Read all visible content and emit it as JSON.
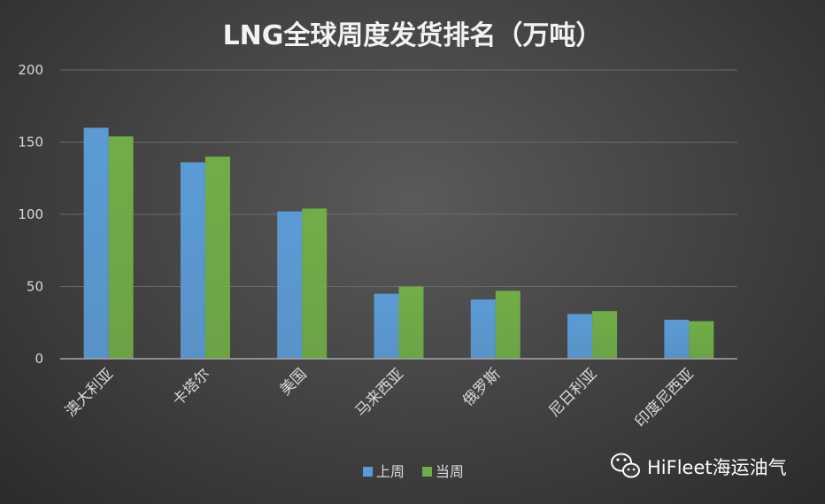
{
  "chart_data": {
    "type": "bar",
    "title": "LNG全球周度发货排名（万吨）",
    "categories": [
      "澳大利亚",
      "卡塔尔",
      "美国",
      "马来西亚",
      "俄罗斯",
      "尼日利亚",
      "印度尼西亚"
    ],
    "series": [
      {
        "name": "上周",
        "color": "#5b9bd5",
        "values": [
          160,
          136,
          102,
          45,
          41,
          31,
          27
        ]
      },
      {
        "name": "当周",
        "color": "#70ad47",
        "values": [
          154,
          140,
          104,
          50,
          47,
          33,
          26
        ]
      }
    ],
    "ylim": [
      0,
      200
    ],
    "yticks": [
      0,
      50,
      100,
      150,
      200
    ],
    "grid": true,
    "legend_position": "bottom"
  },
  "watermark": {
    "text": "HiFleet海运油气",
    "icon": "wechat-icon"
  },
  "colors": {
    "background": "#404040",
    "grid": "#6a6a6a",
    "axis": "#a6a6a6",
    "text": "#d9d9d9"
  }
}
